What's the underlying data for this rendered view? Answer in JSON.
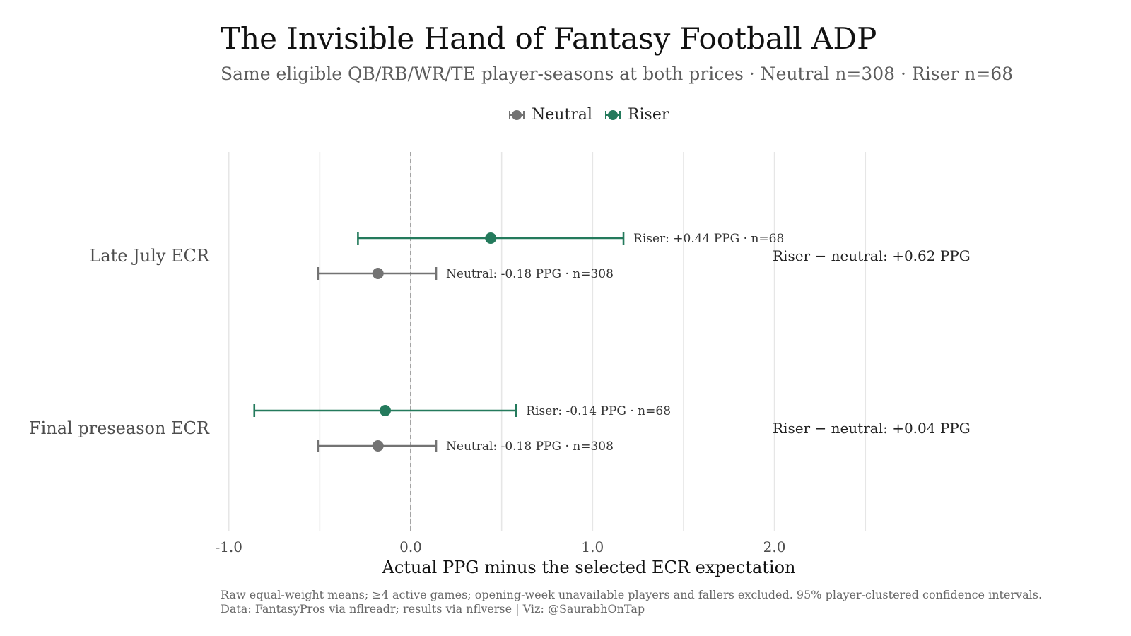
{
  "title": "The Invisible Hand of Fantasy Football ADP",
  "subtitle": "Same eligible QB/RB/WR/TE player-seasons at both prices · Neutral n=308 · Riser n=68",
  "caption": {
    "line1": "Raw equal-weight means; ≥4 active games; opening-week unavailable players and fallers excluded. 95% player-clustered confidence intervals.",
    "line2": "Data: FantasyPros via nflreadr; results via nflverse | Viz: @SaurabhOnTap"
  },
  "legend": [
    {
      "label": "Neutral",
      "color": "#737373"
    },
    {
      "label": "Riser",
      "color": "#247a5c"
    }
  ],
  "chart_data": {
    "type": "errorbar",
    "title": "The Invisible Hand of Fantasy Football ADP",
    "subtitle": "Same eligible QB/RB/WR/TE player-seasons at both prices · Neutral n=308 · Riser n=68",
    "xlabel": "Actual PPG minus the selected ECR expectation",
    "ylabel": "",
    "xlim": [
      -1.1,
      2.95
    ],
    "xticks": [
      -1.0,
      0.0,
      1.0,
      2.0
    ],
    "xtick_labels": [
      "-1.0",
      "0.0",
      "1.0",
      "2.0"
    ],
    "reference_line": 0,
    "grid": true,
    "legend_position": "top",
    "categories": [
      "Late July ECR",
      "Final preseason ECR"
    ],
    "series": [
      {
        "name": "Neutral",
        "color": "#737373",
        "points": [
          {
            "category": "Late July ECR",
            "mean": -0.18,
            "low": -0.51,
            "high": 0.14,
            "label": "Neutral: -0.18 PPG · n=308"
          },
          {
            "category": "Final preseason ECR",
            "mean": -0.18,
            "low": -0.51,
            "high": 0.14,
            "label": "Neutral: -0.18 PPG · n=308"
          }
        ]
      },
      {
        "name": "Riser",
        "color": "#247a5c",
        "points": [
          {
            "category": "Late July ECR",
            "mean": 0.44,
            "low": -0.29,
            "high": 1.17,
            "label": "Riser: +0.44 PPG · n=68"
          },
          {
            "category": "Final preseason ECR",
            "mean": -0.14,
            "low": -0.86,
            "high": 0.58,
            "label": "Riser: -0.14 PPG · n=68"
          }
        ]
      }
    ],
    "annotations": [
      {
        "category": "Late July ECR",
        "text": "Riser − neutral: +0.62 PPG"
      },
      {
        "category": "Final preseason ECR",
        "text": "Riser − neutral: +0.04 PPG"
      }
    ]
  }
}
